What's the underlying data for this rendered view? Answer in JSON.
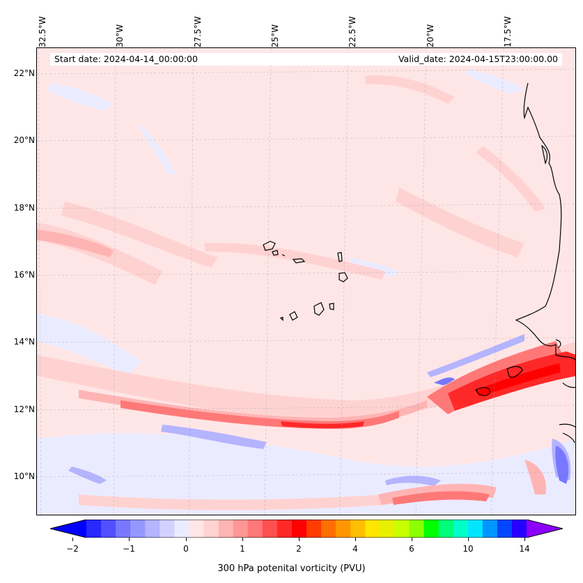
{
  "map": {
    "start_date": "Start date: 2024-04-14_00:00:00",
    "valid_date": "Valid_date: 2024-04-15T23:00:00.00",
    "longitude_labels": [
      "32.5°W",
      "30°W",
      "27.5°W",
      "25°W",
      "22.5°W",
      "20°W",
      "17.5°W"
    ],
    "latitude_labels": [
      "22°N",
      "20°N",
      "18°N",
      "16°N",
      "14°N",
      "12°N",
      "10°N"
    ],
    "gridlines": true,
    "features": [
      "coastline-west-africa",
      "cape-verde-islands"
    ]
  },
  "colorbar": {
    "label": "300 hPa potenital vorticity (PVU)",
    "tick_labels": [
      "−2",
      "−1",
      "0",
      "1",
      "2",
      "4",
      "6",
      "10",
      "14"
    ],
    "extend": "both",
    "colors": [
      "#0000ff",
      "#2828ff",
      "#5050ff",
      "#7878ff",
      "#9696ff",
      "#b4b4ff",
      "#d2d2ff",
      "#ebebff",
      "#ffe6e6",
      "#ffd2d2",
      "#ffb4b4",
      "#ff9696",
      "#ff7878",
      "#ff5050",
      "#ff2828",
      "#ff0000",
      "#ff3c00",
      "#ff6e00",
      "#ff9600",
      "#ffbe00",
      "#ffe600",
      "#e6f000",
      "#c8ff00",
      "#8cff00",
      "#00ff00",
      "#00ff78",
      "#00ffc8",
      "#00e6ff",
      "#0096ff",
      "#0046ff",
      "#2800ff",
      "#8c00ff"
    ]
  }
}
